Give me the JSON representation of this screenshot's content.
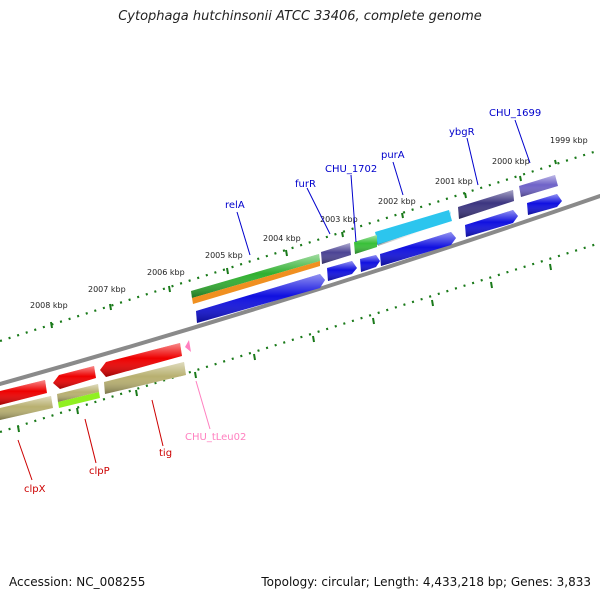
{
  "title": "Cytophaga hutchinsonii ATCC 33406, complete genome",
  "footer": {
    "accession": "Accession: NC_008255",
    "summary": "Topology: circular; Length: 4,433,218 bp; Genes: 3,833"
  },
  "colors": {
    "backbone": "#8a8a8a",
    "ticks": "#1a7a1a",
    "label_blue": "#0000cc",
    "label_red": "#cc0000",
    "label_pink": "#ff80c0"
  },
  "kbp_labels": [
    "1999 kbp",
    "2000 kbp",
    "2001 kbp",
    "2002 kbp",
    "2003 kbp",
    "2004 kbp",
    "2005 kbp",
    "2006 kbp",
    "2007 kbp",
    "2008 kbp"
  ],
  "gene_labels": [
    "CHU_1699",
    "ybgR",
    "purA",
    "CHU_1702",
    "furR",
    "relA",
    "CHU_tLeu02",
    "tig",
    "clpP",
    "clpX"
  ]
}
